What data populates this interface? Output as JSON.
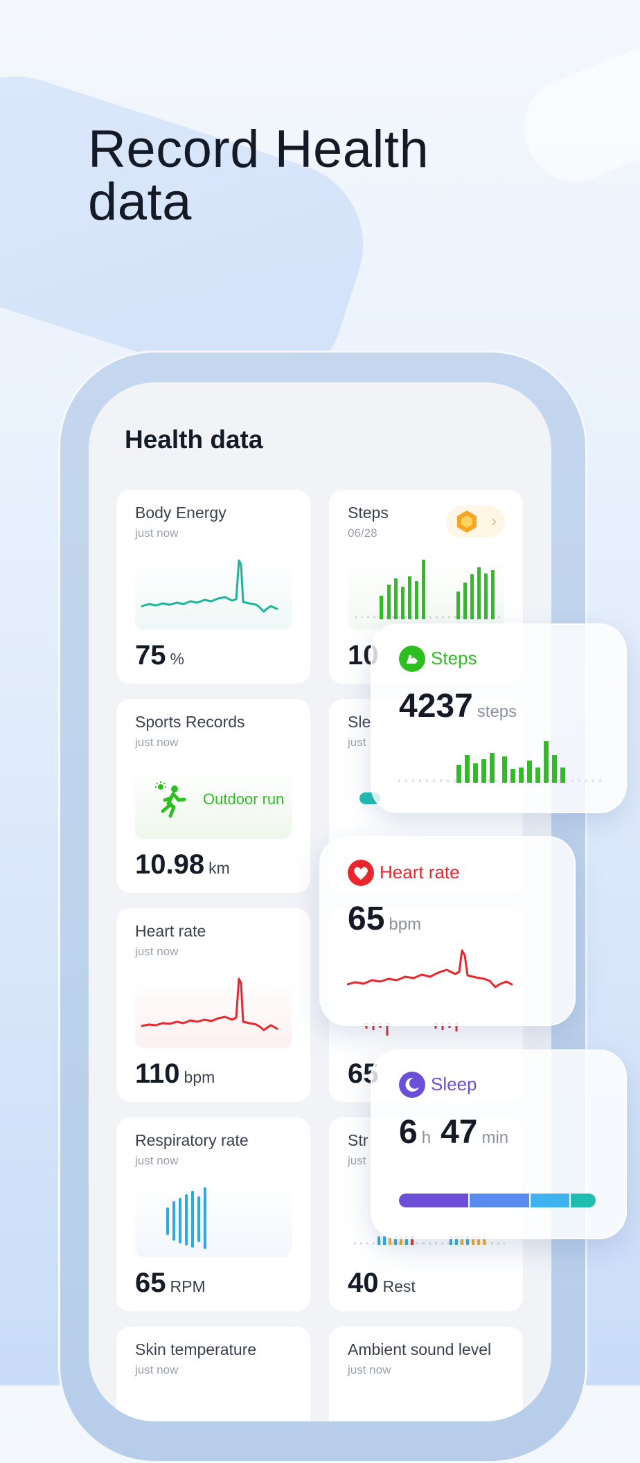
{
  "headline": {
    "line1": "Record Health",
    "line2": "data"
  },
  "screen": {
    "title": "Health data"
  },
  "cards": {
    "body_energy": {
      "title": "Body Energy",
      "sub": "just now",
      "value": "75",
      "unit": "%"
    },
    "steps": {
      "title": "Steps",
      "sub": "06/28",
      "value": "10"
    },
    "sports": {
      "title": "Sports Records",
      "sub": "just now",
      "activity": "Outdoor run",
      "value": "10.98",
      "unit": "km"
    },
    "sleep": {
      "title": "Sle",
      "sub": "just"
    },
    "heart": {
      "title": "Heart rate",
      "sub": "just now",
      "value": "110",
      "unit": "bpm"
    },
    "heart2": {
      "value": "65"
    },
    "resp": {
      "title": "Respiratory rate",
      "sub": "just now",
      "value": "65",
      "unit": "RPM"
    },
    "stress": {
      "title": "Str",
      "sub": "just",
      "value": "40",
      "unit": "Rest"
    },
    "skin": {
      "title": "Skin temperature",
      "sub": "just now"
    },
    "ambient": {
      "title": "Ambient sound level",
      "sub": "just now"
    }
  },
  "overlays": {
    "steps": {
      "title": "Steps",
      "value": "4237",
      "unit": "steps",
      "color": "#2dbe22"
    },
    "heart": {
      "title": "Heart rate",
      "value": "65",
      "unit": "bpm",
      "color": "#e8262c"
    },
    "sleep": {
      "title": "Sleep",
      "hours": "6",
      "h_unit": "h",
      "minutes": "47",
      "m_unit": "min",
      "color": "#6b4fd8",
      "stages": [
        0.36,
        0.31,
        0.2,
        0.13
      ]
    }
  },
  "icons": [
    "shoe-icon",
    "heart-icon",
    "moon-icon",
    "runner-icon",
    "medal-icon",
    "chevron-right-icon"
  ]
}
